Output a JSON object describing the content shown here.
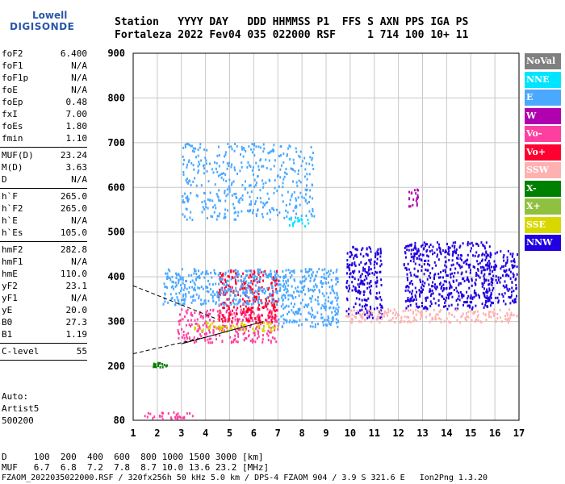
{
  "logo": {
    "top": "Lowell",
    "main": "DIGISONDE"
  },
  "header": {
    "row1": "Station   YYYY DAY   DDD HHMMSS P1  FFS S AXN PPS IGA PS",
    "row2": "Fortaleza 2022 Fev04 035 022000 RSF     1 714 100 10+ 11"
  },
  "params_group1": [
    {
      "k": "foF2",
      "v": "6.400"
    },
    {
      "k": "foF1",
      "v": "N/A"
    },
    {
      "k": "foF1p",
      "v": "N/A"
    },
    {
      "k": "foE",
      "v": "N/A"
    },
    {
      "k": "foEp",
      "v": "0.48"
    },
    {
      "k": "fxI",
      "v": "7.00"
    },
    {
      "k": "foEs",
      "v": "1.80"
    },
    {
      "k": "fmin",
      "v": "1.10"
    }
  ],
  "params_group2": [
    {
      "k": "MUF(D)",
      "v": "23.24"
    },
    {
      "k": "M(D)",
      "v": "3.63"
    },
    {
      "k": "D",
      "v": "N/A"
    }
  ],
  "params_group3": [
    {
      "k": "h`F",
      "v": "265.0"
    },
    {
      "k": "h`F2",
      "v": "265.0"
    },
    {
      "k": "h`E",
      "v": "N/A"
    },
    {
      "k": "h`Es",
      "v": "105.0"
    }
  ],
  "params_group4": [
    {
      "k": "hmF2",
      "v": "282.8"
    },
    {
      "k": "hmF1",
      "v": "N/A"
    },
    {
      "k": "hmE",
      "v": "110.0"
    },
    {
      "k": "yF2",
      "v": "23.1"
    },
    {
      "k": "yF1",
      "v": "N/A"
    },
    {
      "k": "yE",
      "v": "20.0"
    },
    {
      "k": "B0",
      "v": "27.3"
    },
    {
      "k": "B1",
      "v": "1.19"
    }
  ],
  "params_group5": [
    {
      "k": "C-level",
      "v": "55"
    }
  ],
  "auto": {
    "line1": "Auto:",
    "line2": "Artist5",
    "line3": "500200"
  },
  "legend": [
    {
      "label": "NoVal",
      "color": "#808080"
    },
    {
      "label": "NNE",
      "color": "#00e5ff"
    },
    {
      "label": "E",
      "color": "#4aa8ff"
    },
    {
      "label": "W",
      "color": "#b000b0"
    },
    {
      "label": "Vo-",
      "color": "#ff3f9f"
    },
    {
      "label": "Vo+",
      "color": "#ff0030"
    },
    {
      "label": "SSW",
      "color": "#ffb0b0"
    },
    {
      "label": "X-",
      "color": "#008000"
    },
    {
      "label": "X+",
      "color": "#90c040"
    },
    {
      "label": "SSE",
      "color": "#d8d800"
    },
    {
      "label": "NNW",
      "color": "#2000e0"
    }
  ],
  "footer": {
    "row1": "D     100  200  400  600  800 1000 1500 3000 [km]",
    "row2": "MUF   6.7  6.8  7.2  7.8  8.7 10.0 13.6 23.2 [MHz]",
    "row3": "FZAOM_2022035022000.RSF / 320fx256h 50 kHz 5.0 km / DPS-4 FZAOM 904 / 3.9 S 321.6 E   Ion2Png 1.3.20"
  },
  "chart_data": {
    "type": "scatter",
    "title": "",
    "xlabel": "",
    "ylabel": "",
    "xlim": [
      1,
      17
    ],
    "ylim": [
      80,
      900
    ],
    "x_ticks": [
      1,
      2,
      3,
      4,
      5,
      6,
      7,
      8,
      9,
      10,
      11,
      12,
      13,
      14,
      15,
      16,
      17
    ],
    "y_ticks": [
      80,
      200,
      300,
      400,
      500,
      600,
      700,
      800,
      900
    ],
    "y_tick_labels": [
      "80",
      "200",
      "300",
      "400",
      "500",
      "600",
      "700",
      "800",
      "900"
    ],
    "grid": true,
    "legend_position": "right",
    "clusters": [
      {
        "name": "Es",
        "color": "#ff3f9f",
        "x": [
          1.2,
          3.5
        ],
        "y": [
          85,
          100
        ]
      },
      {
        "name": "F-trace",
        "color": "#ff3f9f",
        "x": [
          2.8,
          7.0
        ],
        "y": [
          255,
          330
        ]
      },
      {
        "name": "F-spread-low",
        "color": "#ff0030",
        "x": [
          4.5,
          7.0
        ],
        "y": [
          300,
          420
        ]
      },
      {
        "name": "E-upper",
        "color": "#4aa8ff",
        "x": [
          2.2,
          7.0
        ],
        "y": [
          340,
          420
        ]
      },
      {
        "name": "spread-8",
        "color": "#4aa8ff",
        "x": [
          7.0,
          9.5
        ],
        "y": [
          290,
          420
        ]
      },
      {
        "name": "NNW-10",
        "color": "#2000e0",
        "x": [
          9.8,
          11.3
        ],
        "y": [
          310,
          470
        ]
      },
      {
        "name": "NNW-13",
        "color": "#2000e0",
        "x": [
          12.2,
          13.8
        ],
        "y": [
          330,
          480
        ]
      },
      {
        "name": "NNW-14",
        "color": "#2000e0",
        "x": [
          13.8,
          15.8
        ],
        "y": [
          330,
          480
        ]
      },
      {
        "name": "NNW-16",
        "color": "#2000e0",
        "x": [
          15.5,
          16.9
        ],
        "y": [
          340,
          460
        ]
      },
      {
        "name": "SSW",
        "color": "#ffb0b0",
        "x": [
          9.8,
          16.9
        ],
        "y": [
          300,
          330
        ]
      },
      {
        "name": "W-12",
        "color": "#b000b0",
        "x": [
          12.4,
          12.8
        ],
        "y": [
          560,
          600
        ]
      },
      {
        "name": "NNE-5",
        "color": "#00e5ff",
        "x": [
          7.4,
          8.3
        ],
        "y": [
          515,
          535
        ]
      },
      {
        "name": "scatter-high",
        "color": "#4aa8ff",
        "x": [
          3.0,
          8.5
        ],
        "y": [
          530,
          700
        ]
      },
      {
        "name": "X-",
        "color": "#008000",
        "x": [
          1.8,
          2.4
        ],
        "y": [
          200,
          210
        ]
      },
      {
        "name": "SSE",
        "color": "#d8d800",
        "x": [
          3.5,
          7.0
        ],
        "y": [
          280,
          300
        ]
      }
    ],
    "curves": [
      {
        "name": "profile",
        "style": "dashed",
        "x": [
          1,
          4.5
        ],
        "y": [
          380,
          305
        ]
      },
      {
        "name": "profile-low",
        "style": "dashed",
        "x": [
          1,
          4.0
        ],
        "y": [
          228,
          265
        ]
      },
      {
        "name": "profile-solid",
        "style": "solid",
        "x": [
          3.0,
          6.4
        ],
        "y": [
          250,
          300
        ]
      }
    ]
  }
}
